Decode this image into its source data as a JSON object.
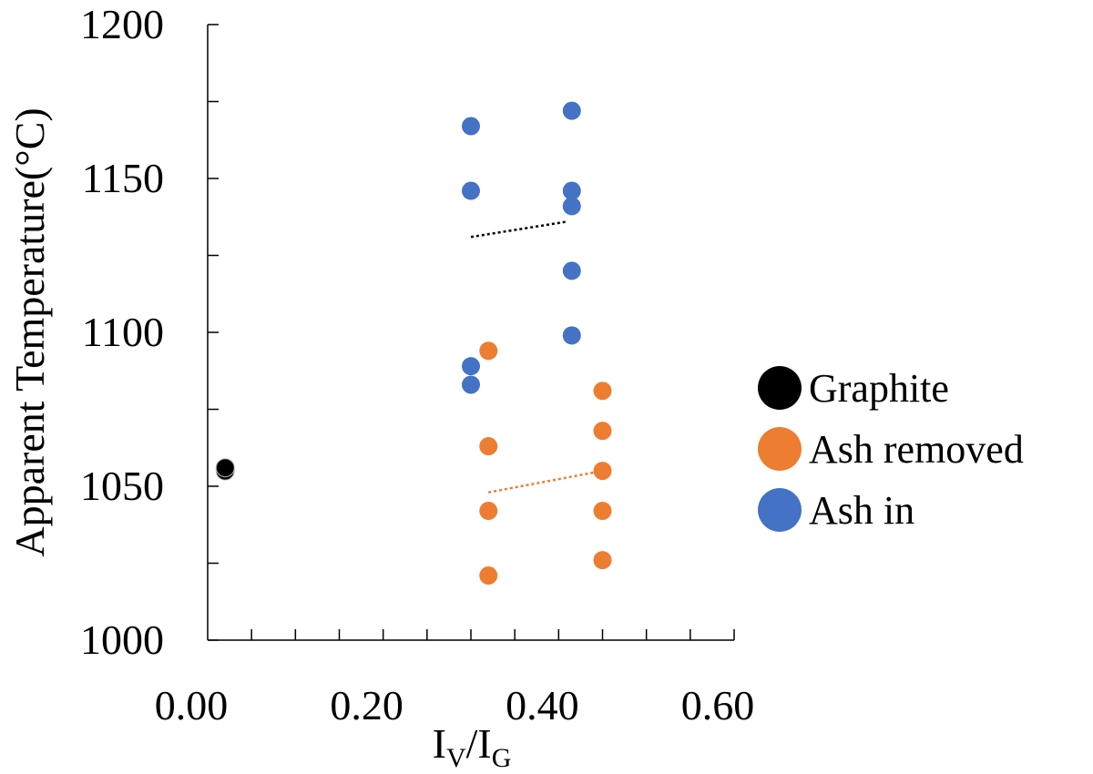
{
  "chart_data": {
    "type": "scatter",
    "title": "",
    "xlabel": "IV/IG",
    "xlabel_parts": {
      "base1": "I",
      "sub1": "V",
      "slash": "/",
      "base2": "I",
      "sub2": "G"
    },
    "ylabel": "Apparent Temperature(°C)",
    "xlim": [
      0,
      0.6
    ],
    "ylim": [
      1000,
      1200
    ],
    "x_ticks": [
      "0.00",
      "0.20",
      "0.40",
      "0.60"
    ],
    "y_ticks": [
      "1000",
      "1050",
      "1100",
      "1150",
      "1200"
    ],
    "grid": false,
    "legend_position": "right",
    "series": [
      {
        "name": "Graphite",
        "color": "#000000",
        "points": [
          {
            "x": 0.02,
            "y": 1055
          },
          {
            "x": 0.02,
            "y": 1056
          }
        ]
      },
      {
        "name": "Ash removed",
        "color": "#ED7D31",
        "points": [
          {
            "x": 0.32,
            "y": 1094
          },
          {
            "x": 0.32,
            "y": 1063
          },
          {
            "x": 0.32,
            "y": 1042
          },
          {
            "x": 0.32,
            "y": 1021
          },
          {
            "x": 0.45,
            "y": 1081
          },
          {
            "x": 0.45,
            "y": 1068
          },
          {
            "x": 0.45,
            "y": 1055
          },
          {
            "x": 0.45,
            "y": 1042
          },
          {
            "x": 0.45,
            "y": 1026
          }
        ],
        "trendline": {
          "x": [
            0.32,
            0.45
          ],
          "y": [
            1048,
            1055
          ]
        }
      },
      {
        "name": "Ash in",
        "color": "#4472C4",
        "points": [
          {
            "x": 0.3,
            "y": 1167
          },
          {
            "x": 0.3,
            "y": 1146
          },
          {
            "x": 0.3,
            "y": 1089
          },
          {
            "x": 0.3,
            "y": 1083
          },
          {
            "x": 0.415,
            "y": 1172
          },
          {
            "x": 0.415,
            "y": 1146
          },
          {
            "x": 0.415,
            "y": 1141
          },
          {
            "x": 0.415,
            "y": 1120
          },
          {
            "x": 0.415,
            "y": 1099
          }
        ],
        "trendline": {
          "x": [
            0.3,
            0.41
          ],
          "y": [
            1131,
            1136
          ]
        }
      }
    ]
  }
}
